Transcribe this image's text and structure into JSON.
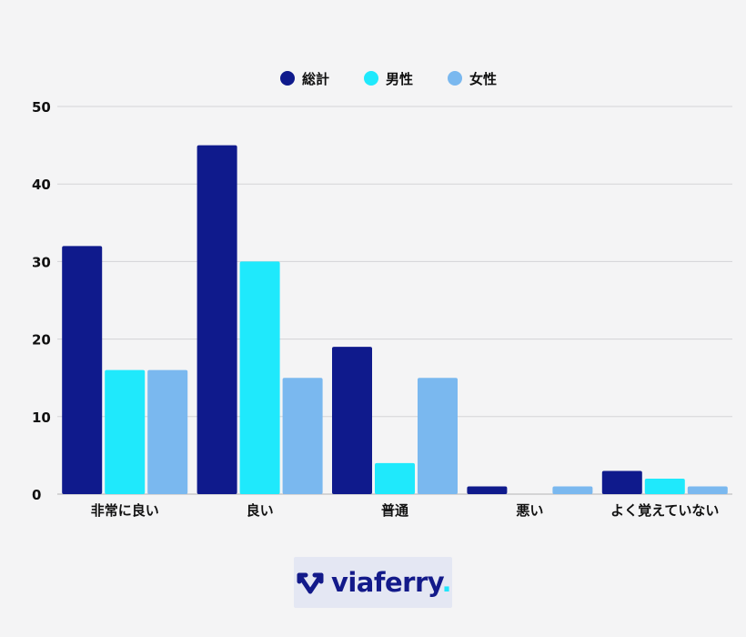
{
  "chart_data": {
    "type": "bar",
    "categories": [
      "非常に良い",
      "良い",
      "普通",
      "悪い",
      "よく覚えていない"
    ],
    "series": [
      {
        "name": "総計",
        "values": [
          32,
          45,
          19,
          1,
          3
        ],
        "color": "#0f1a8c"
      },
      {
        "name": "男性",
        "values": [
          16,
          30,
          4,
          0,
          2
        ],
        "color": "#1fe9fc"
      },
      {
        "name": "女性",
        "values": [
          16,
          15,
          15,
          1,
          1
        ],
        "color": "#7ab8ef"
      }
    ],
    "ylim": [
      0,
      50
    ],
    "yticks": [
      0,
      10,
      20,
      30,
      40,
      50
    ],
    "grid": true,
    "legend_position": "top-center"
  },
  "logo": {
    "text": "viaferry",
    "dot": ".",
    "color": "#131a8a",
    "accent": "#1fe5fb",
    "icon": "viaferry-arrows-logo"
  }
}
